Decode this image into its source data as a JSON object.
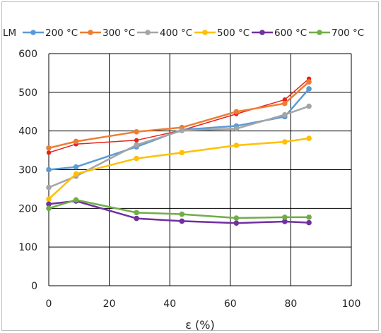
{
  "chart_data": {
    "type": "line",
    "title": "",
    "xlabel": "ε (%)",
    "ylabel": "",
    "xlim": [
      0,
      100
    ],
    "ylim": [
      0,
      600
    ],
    "xticks": [
      "0",
      "20",
      "40",
      "60",
      "80",
      "100"
    ],
    "yticks": [
      "0",
      "100",
      "200",
      "300",
      "400",
      "500",
      "600"
    ],
    "grid": true,
    "legend_position": "top",
    "legend_text": [
      "LM",
      "200 °C",
      "300 °C",
      "400 °C",
      "500 °C",
      "600 °C",
      "700 °C"
    ],
    "series": [
      {
        "name": "LM",
        "color": "#e8221c",
        "x": [
          0,
          9,
          29,
          44,
          62,
          78,
          86
        ],
        "y": [
          344,
          366,
          376,
          402,
          444,
          481,
          535
        ]
      },
      {
        "name": "200 °C",
        "color": "#5b9bd5",
        "x": [
          0,
          9,
          29,
          44,
          62,
          78,
          86
        ],
        "y": [
          300,
          307,
          359,
          403,
          413,
          437,
          509
        ]
      },
      {
        "name": "300 °C",
        "color": "#ed7d31",
        "x": [
          0,
          9,
          29,
          44,
          62,
          78,
          86
        ],
        "y": [
          356,
          373,
          398,
          409,
          450,
          471,
          527
        ]
      },
      {
        "name": "400 °C",
        "color": "#a5a5a5",
        "x": [
          0,
          9,
          29,
          44,
          62,
          78,
          86
        ],
        "y": [
          254,
          283,
          364,
          401,
          406,
          442,
          464
        ]
      },
      {
        "name": "500 °C",
        "color": "#ffc000",
        "x": [
          0,
          9,
          29,
          44,
          62,
          78,
          86
        ],
        "y": [
          224,
          289,
          329,
          344,
          363,
          372,
          381
        ]
      },
      {
        "name": "600 °C",
        "color": "#7030a0",
        "x": [
          0,
          9,
          29,
          44,
          62,
          78,
          86
        ],
        "y": [
          211,
          219,
          174,
          167,
          162,
          166,
          163
        ]
      },
      {
        "name": "700 °C",
        "color": "#70ad47",
        "x": [
          0,
          9,
          29,
          44,
          62,
          78,
          86
        ],
        "y": [
          200,
          222,
          189,
          185,
          175,
          177,
          177
        ]
      }
    ]
  }
}
